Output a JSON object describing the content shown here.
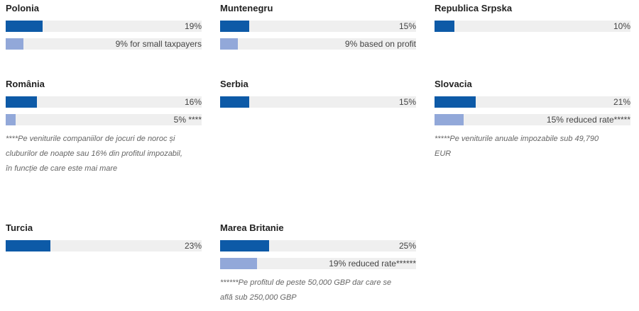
{
  "chart_data": {
    "type": "bar",
    "xlim": [
      0,
      100
    ],
    "colors": {
      "primary": "#0d5aa7",
      "secondary": "#92a8d9",
      "track": "#efefef"
    },
    "panels": [
      {
        "country": "Polonia",
        "bars": [
          {
            "value": 19,
            "label": "19%",
            "kind": "primary"
          },
          {
            "value": 9,
            "label": "9% for small taxpayers",
            "kind": "secondary"
          }
        ],
        "note": ""
      },
      {
        "country": "Muntenegru",
        "bars": [
          {
            "value": 15,
            "label": "15%",
            "kind": "primary"
          },
          {
            "value": 9,
            "label": "9% based on profit",
            "kind": "secondary"
          }
        ],
        "note": ""
      },
      {
        "country": "Republica Srpska",
        "bars": [
          {
            "value": 10,
            "label": "10%",
            "kind": "primary"
          }
        ],
        "note": ""
      },
      {
        "country": "România",
        "bars": [
          {
            "value": 16,
            "label": "16%",
            "kind": "primary"
          },
          {
            "value": 5,
            "label": "5% ****",
            "kind": "secondary"
          }
        ],
        "note": "****Pe veniturile companiilor de jocuri de noroc și\ncluburilor de noapte sau 16% din profitul impozabil,\nîn funcție de care este mai mare"
      },
      {
        "country": "Serbia",
        "bars": [
          {
            "value": 15,
            "label": "15%",
            "kind": "primary"
          }
        ],
        "note": ""
      },
      {
        "country": "Slovacia",
        "bars": [
          {
            "value": 21,
            "label": "21%",
            "kind": "primary"
          },
          {
            "value": 15,
            "label": "15% reduced rate*****",
            "kind": "secondary"
          }
        ],
        "note": "*****Pe veniturile anuale impozabile sub 49,790\nEUR"
      },
      {
        "country": "Turcia",
        "bars": [
          {
            "value": 23,
            "label": "23%",
            "kind": "primary"
          }
        ],
        "note": ""
      },
      {
        "country": "Marea Britanie",
        "bars": [
          {
            "value": 25,
            "label": "25%",
            "kind": "primary"
          },
          {
            "value": 19,
            "label": "19% reduced rate******",
            "kind": "secondary"
          }
        ],
        "note": "******Pe profitul de peste  50,000 GBP dar care se\naflă sub 250,000 GBP"
      }
    ]
  }
}
